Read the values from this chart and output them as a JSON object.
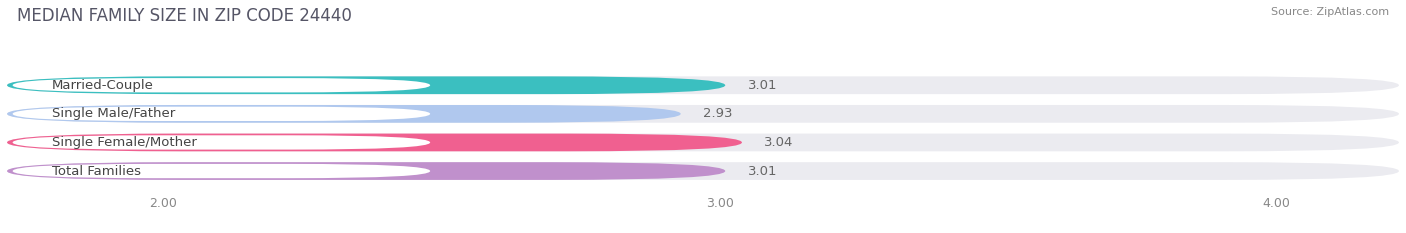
{
  "title": "MEDIAN FAMILY SIZE IN ZIP CODE 24440",
  "source": "Source: ZipAtlas.com",
  "categories": [
    "Married-Couple",
    "Single Male/Father",
    "Single Female/Mother",
    "Total Families"
  ],
  "values": [
    3.01,
    2.93,
    3.04,
    3.01
  ],
  "bar_colors": [
    "#3bbfc0",
    "#b0c8ee",
    "#f06090",
    "#c090cc"
  ],
  "xlim_left": 1.72,
  "xlim_right": 4.22,
  "xstart": 2.0,
  "xticks": [
    2.0,
    3.0,
    4.0
  ],
  "xtick_labels": [
    "2.00",
    "3.00",
    "4.00"
  ],
  "background_color": "#ffffff",
  "bar_bg_color": "#ebebf0",
  "title_fontsize": 12,
  "label_fontsize": 9.5,
  "value_fontsize": 9.5,
  "bar_height": 0.62,
  "bar_spacing": 1.0
}
